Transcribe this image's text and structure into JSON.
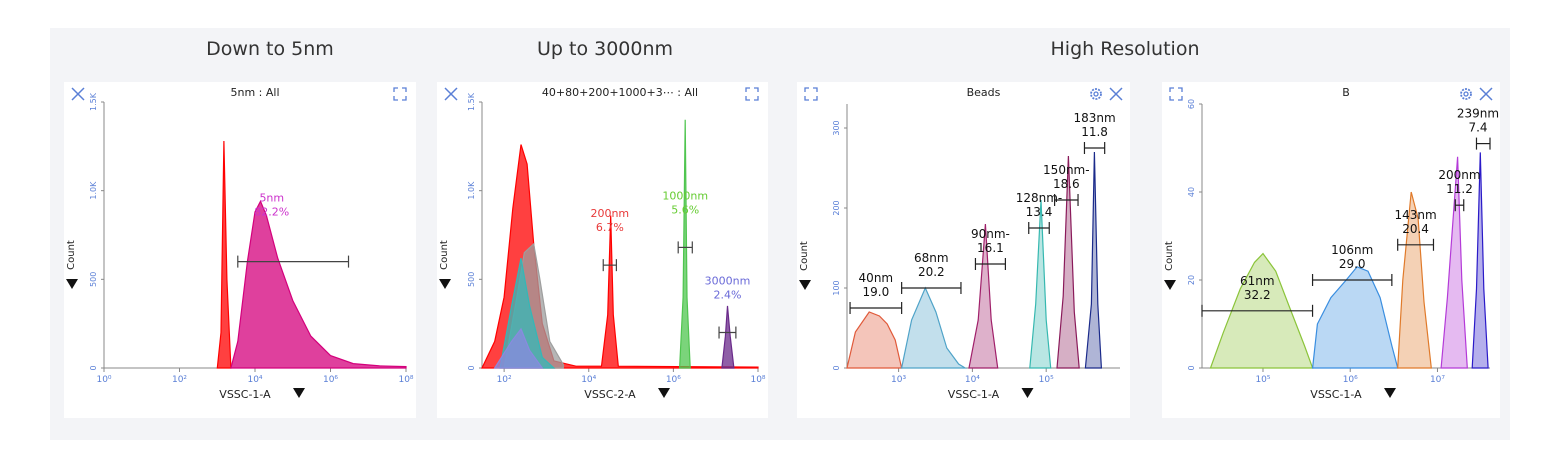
{
  "sections": [
    {
      "title": "Down to 5nm"
    },
    {
      "title": "Up to 3000nm"
    },
    {
      "title": "High Resolution"
    }
  ],
  "chart_data": [
    {
      "type": "area",
      "title": "5nm : All",
      "xlabel": "VSSC-1-A",
      "ylabel": "Count",
      "x_scale": "log",
      "xlim": [
        1,
        100000000
      ],
      "ylim": [
        0,
        1500
      ],
      "x_ticks": [
        "10⁰",
        "10²",
        "10⁴",
        "10⁶",
        "10⁸"
      ],
      "y_ticks": [
        "0",
        "500",
        "1.0K",
        "1.5K"
      ],
      "icons": [
        "close-icon",
        "expand-icon"
      ],
      "series": [
        {
          "color": "#ff0000",
          "points": [
            [
              1000,
              0
            ],
            [
              1260,
              200
            ],
            [
              1500,
              1280
            ],
            [
              1800,
              500
            ],
            [
              2300,
              0
            ]
          ]
        },
        {
          "color": "#d4007c",
          "points": [
            [
              2300,
              0
            ],
            [
              3500,
              150
            ],
            [
              6300,
              600
            ],
            [
              10000,
              880
            ],
            [
              14000,
              940
            ],
            [
              20000,
              860
            ],
            [
              40000,
              620
            ],
            [
              100000,
              380
            ],
            [
              300000,
              180
            ],
            [
              1000000,
              70
            ],
            [
              4000000,
              25
            ],
            [
              20000000,
              12
            ],
            [
              100000000,
              8
            ]
          ]
        }
      ],
      "gates": [
        {
          "label": "5nm",
          "value": "82.2%",
          "x_from": 3500,
          "x_to": 3000000,
          "y": 600,
          "color": "#cc33cc"
        }
      ]
    },
    {
      "type": "area",
      "title": "40+80+200+1000+3⋯ : All",
      "xlabel": "VSSC-2-A",
      "ylabel": "Count",
      "x_scale": "log",
      "xlim": [
        30,
        100000000
      ],
      "ylim": [
        0,
        1500
      ],
      "x_ticks": [
        "10²",
        "10⁴",
        "10⁶",
        "10⁸"
      ],
      "y_ticks": [
        "0",
        "500",
        "1.0K",
        "1.5K"
      ],
      "icons": [
        "close-icon",
        "expand-icon"
      ],
      "series": [
        {
          "color": "#ff0000",
          "points": [
            [
              30,
              0
            ],
            [
              60,
              150
            ],
            [
              100,
              400
            ],
            [
              160,
              900
            ],
            [
              250,
              1260
            ],
            [
              350,
              1150
            ],
            [
              500,
              700
            ],
            [
              800,
              250
            ],
            [
              1500,
              40
            ],
            [
              5000,
              10
            ],
            [
              20000,
              10
            ],
            [
              28000,
              300
            ],
            [
              33000,
              860
            ],
            [
              38000,
              300
            ],
            [
              50000,
              10
            ],
            [
              100000000,
              5
            ]
          ]
        },
        {
          "color": "#9e9e9e",
          "points": [
            [
              100,
              0
            ],
            [
              200,
              400
            ],
            [
              300,
              650
            ],
            [
              500,
              700
            ],
            [
              700,
              500
            ],
            [
              1200,
              150
            ],
            [
              2500,
              20
            ]
          ]
        },
        {
          "color": "#33b8b8",
          "points": [
            [
              80,
              0
            ],
            [
              150,
              350
            ],
            [
              250,
              620
            ],
            [
              400,
              350
            ],
            [
              800,
              60
            ],
            [
              1500,
              0
            ]
          ]
        },
        {
          "color": "#8a8ae0",
          "points": [
            [
              60,
              0
            ],
            [
              150,
              150
            ],
            [
              250,
              220
            ],
            [
              400,
              100
            ],
            [
              800,
              0
            ]
          ]
        },
        {
          "color": "#4fc54f",
          "points": [
            [
              1400000,
              0
            ],
            [
              1700000,
              400
            ],
            [
              1900000,
              1400
            ],
            [
              2100000,
              400
            ],
            [
              2500000,
              0
            ]
          ]
        },
        {
          "color": "#6a2a8a",
          "points": [
            [
              14000000,
              0
            ],
            [
              17000000,
              180
            ],
            [
              19000000,
              350
            ],
            [
              22000000,
              180
            ],
            [
              27000000,
              0
            ]
          ]
        }
      ],
      "gates": [
        {
          "label": "200nm",
          "value": "6.7%",
          "x_from": 22000,
          "x_to": 45000,
          "y": 580,
          "color": "#e83a3a"
        },
        {
          "label": "1000nm",
          "value": "5.6%",
          "x_from": 1300000,
          "x_to": 2800000,
          "y": 680,
          "color": "#66cc33"
        },
        {
          "label": "3000nm",
          "value": "2.4%",
          "x_from": 12000000,
          "x_to": 30000000,
          "y": 200,
          "color": "#6a6ad8"
        }
      ]
    },
    {
      "type": "area",
      "title": "Beads",
      "xlabel": "VSSC-1-A",
      "ylabel": "Count",
      "x_scale": "log",
      "xlim": [
        200,
        1000000
      ],
      "ylim": [
        0,
        330
      ],
      "x_ticks": [
        "10³",
        "10⁴",
        "10⁵"
      ],
      "y_ticks": [
        "0",
        "100",
        "200",
        "300"
      ],
      "icons": [
        "expand-icon",
        "settings-icon",
        "close-icon"
      ],
      "series": [
        {
          "color": "#e05a3a",
          "points": [
            [
              200,
              0
            ],
            [
              260,
              45
            ],
            [
              400,
              70
            ],
            [
              550,
              65
            ],
            [
              700,
              55
            ],
            [
              900,
              35
            ],
            [
              1100,
              0
            ]
          ]
        },
        {
          "color": "#4fa3c8",
          "points": [
            [
              1100,
              0
            ],
            [
              1500,
              60
            ],
            [
              2300,
              100
            ],
            [
              3200,
              70
            ],
            [
              4500,
              25
            ],
            [
              6500,
              5
            ],
            [
              8000,
              0
            ]
          ]
        },
        {
          "color": "#a0206a",
          "points": [
            [
              9000,
              0
            ],
            [
              12000,
              60
            ],
            [
              15000,
              180
            ],
            [
              18000,
              60
            ],
            [
              22000,
              0
            ]
          ]
        },
        {
          "color": "#36b8b0",
          "points": [
            [
              60000,
              0
            ],
            [
              72000,
              80
            ],
            [
              85000,
              210
            ],
            [
              100000,
              60
            ],
            [
              115000,
              0
            ]
          ]
        },
        {
          "color": "#8a1a5a",
          "points": [
            [
              140000,
              0
            ],
            [
              170000,
              90
            ],
            [
              200000,
              265
            ],
            [
              240000,
              70
            ],
            [
              280000,
              0
            ]
          ]
        },
        {
          "color": "#1a2a8a",
          "points": [
            [
              340000,
              0
            ],
            [
              410000,
              80
            ],
            [
              450000,
              270
            ],
            [
              500000,
              80
            ],
            [
              560000,
              0
            ]
          ]
        }
      ],
      "gates": [
        {
          "label": "40nm",
          "value": "19.0",
          "x_from": 220,
          "x_to": 1100,
          "y": 75,
          "color": "#111111"
        },
        {
          "label": "68nm",
          "value": "20.2",
          "x_from": 1100,
          "x_to": 7000,
          "y": 100,
          "color": "#111111"
        },
        {
          "label": "90nm-",
          "value": "16.1",
          "x_from": 11000,
          "x_to": 28000,
          "y": 130,
          "color": "#111111"
        },
        {
          "label": "128nm-",
          "value": "13.4",
          "x_from": 58000,
          "x_to": 110000,
          "y": 175,
          "color": "#111111"
        },
        {
          "label": "150nm-",
          "value": "18.6",
          "x_from": 130000,
          "x_to": 270000,
          "y": 210,
          "color": "#111111"
        },
        {
          "label": "183nm",
          "value": "11.8",
          "x_from": 330000,
          "x_to": 620000,
          "y": 275,
          "color": "#111111"
        }
      ]
    },
    {
      "type": "area",
      "title": "B",
      "xlabel": "VSSC-1-A",
      "ylabel": "Count",
      "x_scale": "log",
      "xlim": [
        20000,
        40000000
      ],
      "ylim": [
        0,
        60
      ],
      "x_ticks": [
        "10⁵",
        "10⁶",
        "10⁷"
      ],
      "y_ticks": [
        "0",
        "20",
        "40",
        "60"
      ],
      "icons": [
        "expand-icon",
        "settings-icon",
        "close-icon"
      ],
      "series": [
        {
          "color": "#8bc43a",
          "points": [
            [
              25000,
              0
            ],
            [
              35000,
              8
            ],
            [
              55000,
              18
            ],
            [
              80000,
              24
            ],
            [
              100000,
              26
            ],
            [
              140000,
              22
            ],
            [
              200000,
              14
            ],
            [
              300000,
              5
            ],
            [
              370000,
              0
            ]
          ]
        },
        {
          "color": "#3a8ee0",
          "points": [
            [
              370000,
              0
            ],
            [
              420000,
              10
            ],
            [
              600000,
              16
            ],
            [
              900000,
              20
            ],
            [
              1200000,
              23
            ],
            [
              1600000,
              22
            ],
            [
              2200000,
              16
            ],
            [
              3000000,
              5
            ],
            [
              3500000,
              0
            ]
          ]
        },
        {
          "color": "#e07a2a",
          "points": [
            [
              3500000,
              0
            ],
            [
              4000000,
              20
            ],
            [
              5000000,
              40
            ],
            [
              6000000,
              34
            ],
            [
              7000000,
              15
            ],
            [
              8500000,
              0
            ]
          ]
        },
        {
          "color": "#b43ad8",
          "points": [
            [
              11000000,
              0
            ],
            [
              13000000,
              16
            ],
            [
              17000000,
              48
            ],
            [
              19000000,
              20
            ],
            [
              22000000,
              0
            ]
          ]
        },
        {
          "color": "#2a1ac8",
          "points": [
            [
              25000000,
              0
            ],
            [
              28000000,
              18
            ],
            [
              31000000,
              49
            ],
            [
              34000000,
              18
            ],
            [
              38000000,
              0
            ]
          ]
        }
      ],
      "gates": [
        {
          "label": "61nm",
          "value": "32.2",
          "x_from": 20000,
          "x_to": 370000,
          "y": 13,
          "color": "#111111"
        },
        {
          "label": "106nm",
          "value": "29.0",
          "x_from": 370000,
          "x_to": 3000000,
          "y": 20,
          "color": "#111111"
        },
        {
          "label": "143nm",
          "value": "20.4",
          "x_from": 3500000,
          "x_to": 9000000,
          "y": 28,
          "color": "#111111"
        },
        {
          "label": "200nm",
          "value": "11.2",
          "x_from": 16000000,
          "x_to": 20000000,
          "y": 37,
          "color": "#111111"
        },
        {
          "label": "239nm",
          "value": "7.4",
          "x_from": 28000000,
          "x_to": 40000000,
          "y": 51,
          "color": "#111111"
        }
      ]
    }
  ]
}
